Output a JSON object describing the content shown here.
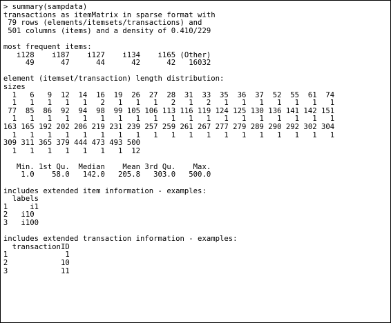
{
  "console": {
    "lines": [
      "> summary(sampdata)",
      "transactions as itemMatrix in sparse format with",
      " 79 rows (elements/itemsets/transactions) and",
      " 501 columns (items) and a density of 0.410/229",
      "",
      "most frequent items:",
      "   i128    i187    i127    i134    i165 (Other)",
      "     49      47      44      42      42   16032",
      "",
      "element (itemset/transaction) length distribution:",
      "sizes",
      "  1   6   9  12  14  16  19  26  27  28  31  33  35  36  37  52  55  61  74",
      "  1   1   1   1   1   2   1   1   1   2   1   2   1   1   1   1   1   1   1",
      " 77  85  86  92  94  98  99 105 106 113 116 119 124 125 130 136 141 142 151",
      "  1   1   1   1   1   1   1   1   1   1   1   1   1   1   1   1   1   1   1",
      "163 165 192 202 206 219 231 239 257 259 261 267 277 279 289 290 292 302 304",
      "  1   1   1   1   1   1   1   1   1   1   1   1   1   1   1   1   1   1   1",
      "309 311 365 379 444 473 493 500",
      "  1   1   1   1   1   1   1  12",
      "",
      "   Min. 1st Qu.  Median    Mean 3rd Qu.    Max.",
      "    1.0    58.0   142.0   205.8   303.0   500.0",
      "",
      "includes extended item information - examples:",
      "  labels",
      "1     i1",
      "2   i10",
      "3   i100",
      "",
      "includes extended transaction information - examples:",
      "  transactionID",
      "1             1",
      "2            10",
      "3            11"
    ]
  }
}
